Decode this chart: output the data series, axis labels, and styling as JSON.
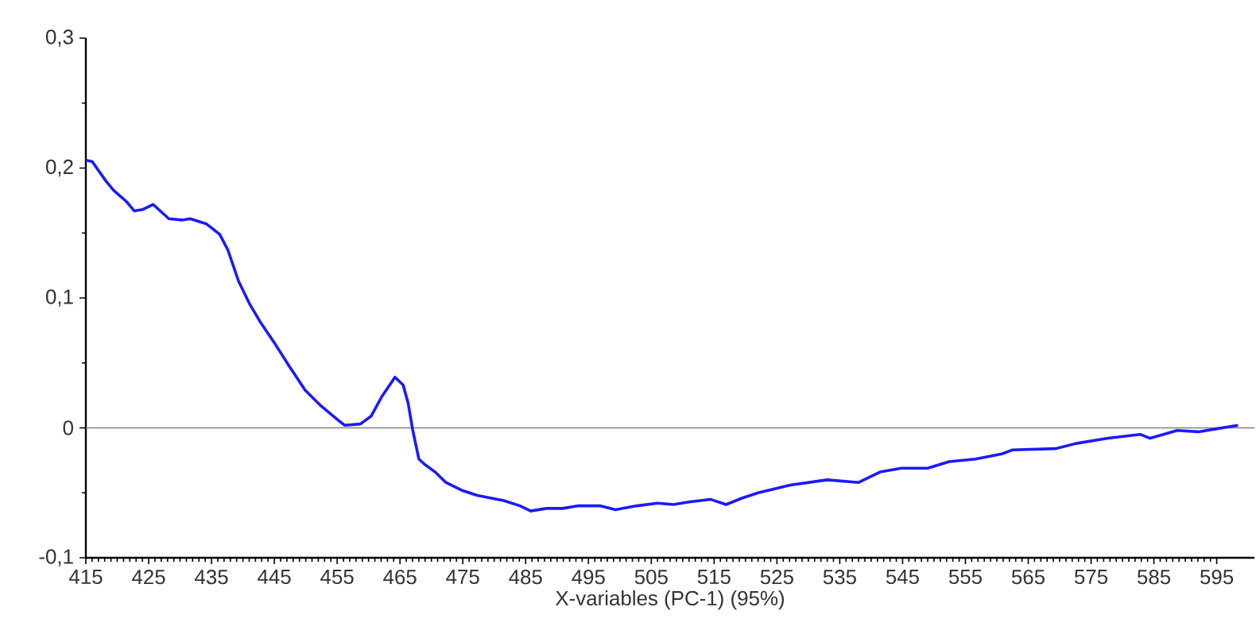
{
  "chart_data": {
    "type": "line",
    "xlabel": "X-variables (PC-1) (95%)",
    "xlim": [
      415,
      601
    ],
    "xticks": [
      415,
      425,
      435,
      445,
      455,
      465,
      475,
      485,
      495,
      505,
      515,
      525,
      535,
      545,
      555,
      565,
      575,
      585,
      595
    ],
    "ylim": [
      -0.1,
      0.3
    ],
    "yticks": [
      {
        "value": -0.1,
        "label": "-0,1"
      },
      {
        "value": 0,
        "label": "0"
      },
      {
        "value": 0.1,
        "label": "0,1"
      },
      {
        "value": 0.2,
        "label": "0,2"
      },
      {
        "value": 0.3,
        "label": "0,3"
      }
    ],
    "grid": false,
    "marker": "none",
    "line_style": "solid",
    "ref_lines": [
      {
        "axis": "y",
        "value": 0,
        "color": "#808080"
      }
    ],
    "series": [
      {
        "color": "#1a1aff",
        "x": [
          415,
          416,
          418.2,
          419.4,
          421.5,
          422.7,
          424,
          425.7,
          428.2,
          430.3,
          431.6,
          434.2,
          436.3,
          437.6,
          439.3,
          441,
          442.7,
          445.2,
          447.3,
          449.9,
          452.4,
          455.4,
          456.2,
          458.7,
          460.4,
          462.1,
          464.2,
          465.5,
          466.3,
          467,
          468,
          468.9,
          470.6,
          472.3,
          474.8,
          477.3,
          481.5,
          484.1,
          485.8,
          488.3,
          490.9,
          493.4,
          496.8,
          499.3,
          502.7,
          506,
          508.5,
          511,
          514.4,
          516.9,
          519.5,
          522,
          527.1,
          533,
          538,
          541.4,
          544.8,
          549,
          552.4,
          556.6,
          560.8,
          562.5,
          569.3,
          572.6,
          577.7,
          582.8,
          584.4,
          588.7,
          592.1,
          594.6,
          598.4
        ],
        "values": [
          0.206,
          0.205,
          0.19,
          0.183,
          0.174,
          0.167,
          0.168,
          0.172,
          0.161,
          0.16,
          0.161,
          0.157,
          0.149,
          0.137,
          0.113,
          0.096,
          0.082,
          0.064,
          0.048,
          0.029,
          0.017,
          0.005,
          0.002,
          0.003,
          0.009,
          0.024,
          0.039,
          0.033,
          0.019,
          -0.001,
          -0.024,
          -0.028,
          -0.034,
          -0.042,
          -0.048,
          -0.052,
          -0.056,
          -0.06,
          -0.064,
          -0.062,
          -0.062,
          -0.06,
          -0.06,
          -0.063,
          -0.06,
          -0.058,
          -0.059,
          -0.057,
          -0.055,
          -0.059,
          -0.054,
          -0.05,
          -0.044,
          -0.04,
          -0.042,
          -0.034,
          -0.031,
          -0.031,
          -0.026,
          -0.024,
          -0.02,
          -0.017,
          -0.016,
          -0.012,
          -0.008,
          -0.005,
          -0.008,
          -0.002,
          -0.003,
          -0.001,
          0.002
        ]
      }
    ]
  }
}
